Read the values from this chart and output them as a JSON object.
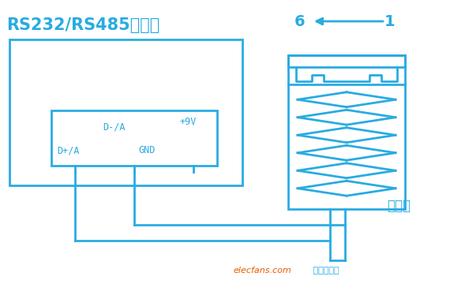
{
  "bg_color": "#ffffff",
  "line_color": "#29abe2",
  "line_width": 2.0,
  "title_text": "RS232/RS485转换器",
  "label_color": "#29abe2",
  "connector_label": "变频器",
  "pin_labels": [
    "D+/A",
    "D-/A",
    "+9V",
    "GND"
  ],
  "watermark_orange": "elecfans.com",
  "watermark_blue": " 电子发烧友",
  "num_left": "6",
  "num_right": "1"
}
